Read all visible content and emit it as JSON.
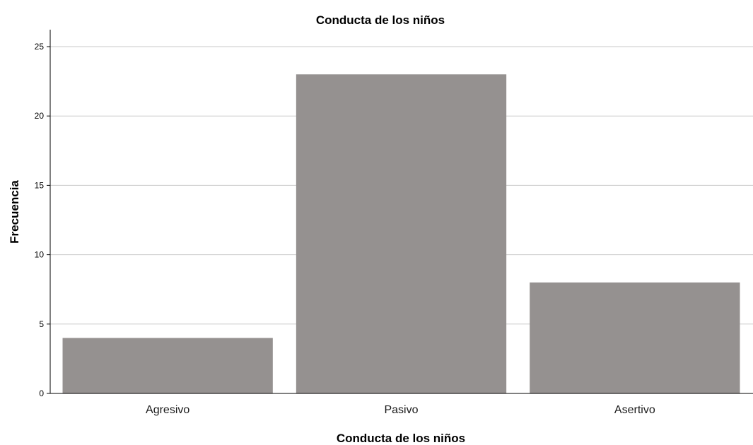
{
  "chart_data": {
    "type": "bar",
    "title": "Conducta de los niños",
    "xlabel": "Conducta de los niños",
    "ylabel": "Frecuencia",
    "categories": [
      "Agresivo",
      "Pasivo",
      "Asertivo"
    ],
    "values": [
      4,
      23,
      8
    ],
    "ylim": [
      0,
      26
    ],
    "yticks": [
      0,
      5,
      10,
      15,
      20,
      25
    ],
    "grid": true,
    "bar_color": "#959190",
    "gridline_color": "#c8c8c8",
    "axis_color": "#000000"
  }
}
